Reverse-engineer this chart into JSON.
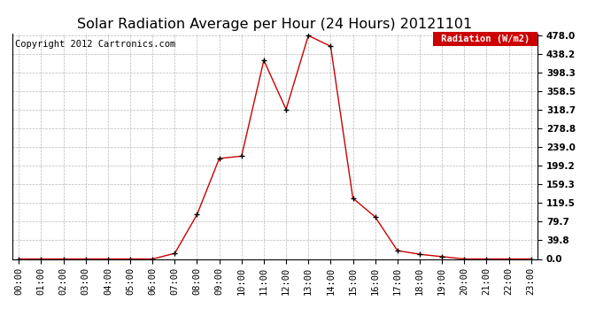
{
  "title": "Solar Radiation Average per Hour (24 Hours) 20121101",
  "copyright_text": "Copyright 2012 Cartronics.com",
  "legend_label": "Radiation (W/m2)",
  "hours": [
    0,
    1,
    2,
    3,
    4,
    5,
    6,
    7,
    8,
    9,
    10,
    11,
    12,
    13,
    14,
    15,
    16,
    17,
    18,
    19,
    20,
    21,
    22,
    23
  ],
  "values": [
    0,
    0,
    0,
    0,
    0,
    0,
    0,
    12,
    95,
    215,
    220,
    425,
    320,
    478,
    455,
    130,
    90,
    18,
    10,
    5,
    0,
    0,
    0,
    0
  ],
  "yticks": [
    0.0,
    39.8,
    79.7,
    119.5,
    159.3,
    199.2,
    239.0,
    278.8,
    318.7,
    358.5,
    398.3,
    438.2,
    478.0
  ],
  "line_color": "#cc0000",
  "marker_color": "#000000",
  "background_color": "#ffffff",
  "grid_color": "#b0b0b0",
  "legend_bg": "#cc0000",
  "legend_text_color": "#ffffff",
  "title_fontsize": 11.5,
  "copyright_fontsize": 7.5,
  "tick_fontsize": 7.5,
  "ymax": 478.0,
  "ymin": 0.0,
  "figwidth": 6.9,
  "figheight": 3.75,
  "dpi": 100
}
